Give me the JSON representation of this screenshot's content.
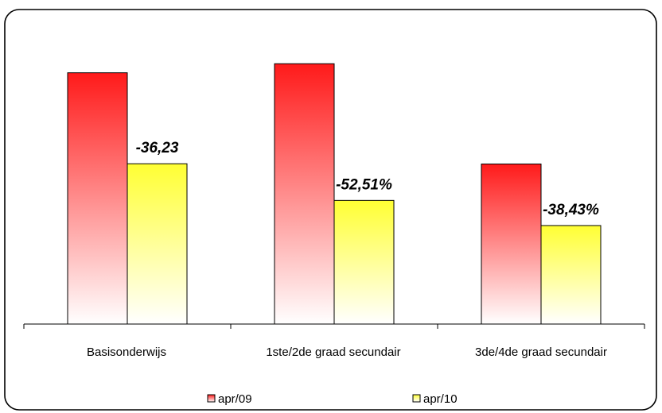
{
  "chart_data": {
    "type": "bar",
    "categories": [
      "Basisonderwijs",
      "1ste/2de graad secundair",
      "3de/4de graad secundair"
    ],
    "series": [
      {
        "name": "apr/09",
        "values": [
          100,
          103.6,
          63.7
        ]
      },
      {
        "name": "apr/10",
        "values": [
          63.8,
          49.2,
          39.2
        ]
      }
    ],
    "data_labels": [
      "-36,23",
      "-52,51%",
      "-38,43%"
    ],
    "ylim": [
      0,
      110
    ],
    "grid": false,
    "legend_position": "bottom",
    "colors": {
      "apr09_top": "#ff1a1a",
      "apr09_bottom": "#ffffff",
      "apr10_top": "#ffff33",
      "apr10_bottom": "#ffffff"
    }
  }
}
